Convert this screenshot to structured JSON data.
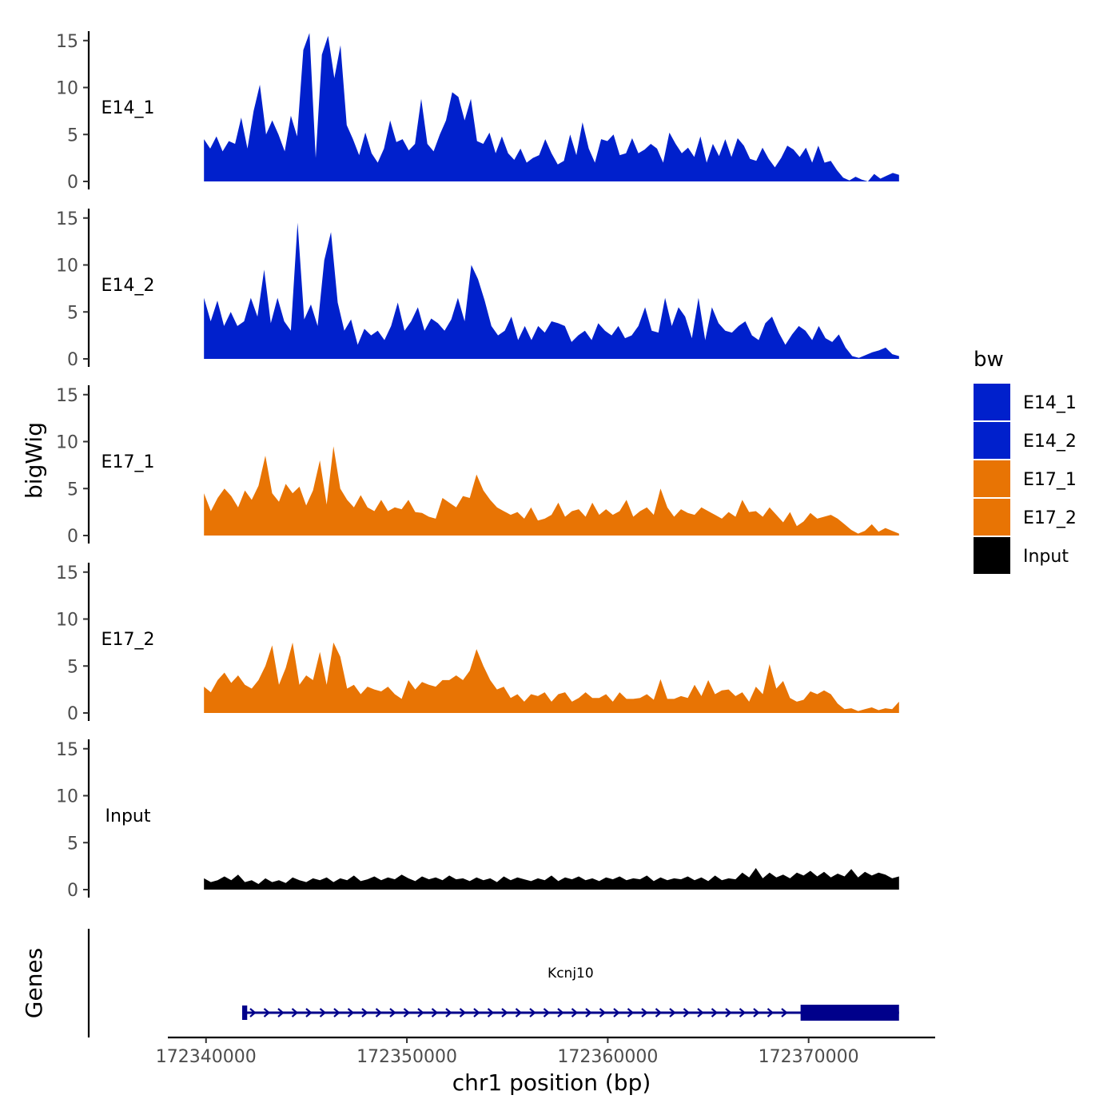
{
  "chart_data": {
    "type": "area",
    "title": "",
    "xlabel": "chr1 position (bp)",
    "ylabel": "bigWig",
    "genes_label": "Genes",
    "xlim": [
      172338100,
      172376300
    ],
    "ylim": [
      0,
      16
    ],
    "x_ticks": [
      172340000,
      172350000,
      172360000,
      172370000
    ],
    "x_tick_labels": [
      "172340000",
      "172350000",
      "172360000",
      "172370000"
    ],
    "y_ticks": [
      0,
      5,
      10,
      15
    ],
    "y_tick_labels": [
      "0",
      "5",
      "10",
      "15"
    ],
    "data_start": 172339900,
    "data_end": 172374500,
    "legend": {
      "title": "bw",
      "entries": [
        {
          "label": "E14_1",
          "color": "#0020cc"
        },
        {
          "label": "E14_2",
          "color": "#0020cc"
        },
        {
          "label": "E17_1",
          "color": "#e87404"
        },
        {
          "label": "E17_2",
          "color": "#e87404"
        },
        {
          "label": "Input",
          "color": "#000000"
        }
      ]
    },
    "series": [
      {
        "name": "E14_1",
        "color": "#0020cc",
        "values": [
          4.5,
          3.5,
          4.8,
          3.2,
          4.3,
          4.0,
          6.8,
          3.5,
          7.5,
          10.3,
          5.0,
          6.5,
          5.0,
          3.2,
          7.0,
          4.8,
          14.0,
          15.8,
          2.5,
          13.5,
          15.5,
          11.0,
          14.5,
          6.0,
          4.5,
          2.8,
          5.2,
          3.0,
          2.0,
          3.5,
          6.5,
          4.2,
          4.5,
          3.3,
          4.0,
          8.8,
          4.0,
          3.2,
          5.0,
          6.5,
          9.5,
          9.0,
          6.5,
          8.8,
          4.3,
          4.0,
          5.2,
          3.0,
          4.8,
          3.0,
          2.3,
          3.5,
          2.0,
          2.5,
          2.8,
          4.5,
          3.0,
          1.8,
          2.2,
          5.0,
          2.8,
          6.3,
          3.5,
          2.0,
          4.5,
          4.3,
          5.0,
          2.8,
          3.0,
          4.6,
          3.0,
          3.4,
          4.0,
          3.5,
          2.0,
          5.2,
          4.0,
          3.0,
          3.6,
          2.6,
          4.8,
          2.0,
          4.0,
          2.7,
          4.5,
          2.6,
          4.6,
          3.8,
          2.4,
          2.2,
          3.6,
          2.4,
          1.5,
          2.5,
          3.8,
          3.4,
          2.6,
          3.6,
          2.0,
          3.8,
          2.0,
          2.2,
          1.2,
          0.4,
          0.1,
          0.5,
          0.2,
          0.0,
          0.8,
          0.3,
          0.6,
          0.9,
          0.7
        ]
      },
      {
        "name": "E14_2",
        "color": "#0020cc",
        "values": [
          6.5,
          4.0,
          6.2,
          3.5,
          5.0,
          3.5,
          4.0,
          6.5,
          4.5,
          9.5,
          3.8,
          6.5,
          4.0,
          3.0,
          14.5,
          4.2,
          5.8,
          3.5,
          10.5,
          13.5,
          6.0,
          3.0,
          4.2,
          1.5,
          3.2,
          2.5,
          3.0,
          2.0,
          3.5,
          6.0,
          3.0,
          4.0,
          5.5,
          3.0,
          4.3,
          3.8,
          3.0,
          4.2,
          6.5,
          4.0,
          10.0,
          8.5,
          6.2,
          3.5,
          2.5,
          3.0,
          4.5,
          2.0,
          3.5,
          2.0,
          3.5,
          2.8,
          4.0,
          3.8,
          3.5,
          1.8,
          2.5,
          3.0,
          2.0,
          3.8,
          3.0,
          2.5,
          3.5,
          2.2,
          2.5,
          3.5,
          5.5,
          3.0,
          2.8,
          6.5,
          3.5,
          5.5,
          4.5,
          2.2,
          6.5,
          2.0,
          5.5,
          3.8,
          3.0,
          2.8,
          3.5,
          4.0,
          2.5,
          2.0,
          3.8,
          4.5,
          2.8,
          1.5,
          2.6,
          3.5,
          3.0,
          2.0,
          3.5,
          2.2,
          1.8,
          2.6,
          1.2,
          0.3,
          0.1,
          0.4,
          0.7,
          0.9,
          1.2,
          0.5,
          0.3
        ]
      },
      {
        "name": "E17_1",
        "color": "#e87404",
        "values": [
          4.5,
          2.6,
          4.0,
          5.0,
          4.2,
          3.0,
          4.8,
          3.8,
          5.3,
          8.5,
          4.5,
          3.6,
          5.5,
          4.5,
          5.2,
          3.2,
          4.8,
          8.0,
          3.3,
          9.5,
          5.0,
          3.8,
          3.0,
          4.3,
          3.0,
          2.6,
          3.8,
          2.6,
          3.0,
          2.8,
          3.8,
          2.5,
          2.4,
          2.0,
          1.8,
          4.0,
          3.5,
          3.0,
          4.2,
          4.0,
          6.5,
          4.8,
          3.8,
          3.0,
          2.6,
          2.2,
          2.5,
          1.8,
          3.0,
          1.6,
          1.8,
          2.2,
          3.5,
          2.0,
          2.6,
          2.8,
          2.0,
          3.5,
          2.2,
          2.8,
          2.2,
          2.6,
          3.8,
          2.0,
          2.6,
          3.0,
          2.2,
          5.0,
          3.0,
          2.0,
          2.8,
          2.4,
          2.2,
          3.0,
          2.6,
          2.2,
          1.8,
          2.5,
          2.0,
          3.8,
          2.5,
          2.6,
          2.0,
          3.0,
          2.2,
          1.4,
          2.5,
          1.0,
          1.5,
          2.4,
          1.8,
          2.0,
          2.2,
          1.8,
          1.2,
          0.6,
          0.2,
          0.5,
          1.2,
          0.4,
          0.8,
          0.5,
          0.2
        ]
      },
      {
        "name": "E17_2",
        "color": "#e87404",
        "values": [
          2.8,
          2.2,
          3.5,
          4.3,
          3.2,
          4.0,
          3.0,
          2.6,
          3.5,
          5.0,
          7.2,
          3.0,
          4.8,
          7.5,
          3.0,
          4.0,
          3.5,
          6.5,
          3.0,
          7.5,
          6.0,
          2.6,
          3.0,
          2.0,
          2.8,
          2.5,
          2.3,
          2.8,
          2.0,
          1.5,
          3.5,
          2.5,
          3.3,
          3.0,
          2.8,
          3.5,
          3.5,
          4.0,
          3.5,
          4.5,
          6.8,
          5.0,
          3.5,
          2.5,
          2.8,
          1.6,
          2.0,
          1.2,
          2.0,
          1.8,
          2.2,
          1.2,
          2.0,
          2.2,
          1.2,
          1.6,
          2.2,
          1.6,
          1.6,
          2.0,
          1.2,
          2.2,
          1.5,
          1.5,
          1.6,
          2.0,
          1.4,
          3.6,
          1.5,
          1.5,
          1.8,
          1.6,
          3.0,
          1.8,
          3.5,
          2.0,
          2.4,
          2.5,
          1.8,
          2.2,
          1.2,
          2.8,
          2.0,
          5.2,
          2.6,
          3.4,
          1.6,
          1.2,
          1.4,
          2.3,
          2.0,
          2.4,
          2.0,
          1.0,
          0.4,
          0.5,
          0.2,
          0.4,
          0.6,
          0.3,
          0.5,
          0.4,
          1.2
        ]
      },
      {
        "name": "Input",
        "color": "#000000",
        "values": [
          1.2,
          0.8,
          1.0,
          1.4,
          1.0,
          1.6,
          0.8,
          1.0,
          0.6,
          1.2,
          0.8,
          1.0,
          0.7,
          1.3,
          1.0,
          0.8,
          1.2,
          1.0,
          1.3,
          0.8,
          1.2,
          1.0,
          1.5,
          0.9,
          1.1,
          1.4,
          1.0,
          1.3,
          1.1,
          1.6,
          1.2,
          0.9,
          1.4,
          1.1,
          1.3,
          1.0,
          1.5,
          1.1,
          1.2,
          0.9,
          1.3,
          1.0,
          1.2,
          0.8,
          1.4,
          1.0,
          1.3,
          1.1,
          0.9,
          1.2,
          1.0,
          1.5,
          0.9,
          1.3,
          1.1,
          1.4,
          1.0,
          1.2,
          0.9,
          1.3,
          1.1,
          1.4,
          1.0,
          1.2,
          1.1,
          1.5,
          0.9,
          1.3,
          1.0,
          1.2,
          1.1,
          1.4,
          1.0,
          1.3,
          0.9,
          1.5,
          1.0,
          1.2,
          1.1,
          1.8,
          1.3,
          2.3,
          1.2,
          1.8,
          1.3,
          1.6,
          1.2,
          1.8,
          1.5,
          2.0,
          1.4,
          1.9,
          1.3,
          1.7,
          1.4,
          2.2,
          1.3,
          1.9,
          1.5,
          1.8,
          1.6,
          1.2,
          1.4
        ]
      }
    ],
    "gene": {
      "name": "Kcnj10",
      "tx_start": 172341800,
      "tx_end": 172374500,
      "utr_start": 172342050,
      "cds_start": 172369600,
      "cds_end": 172374500,
      "strand": "+",
      "color": "#00008b"
    }
  }
}
